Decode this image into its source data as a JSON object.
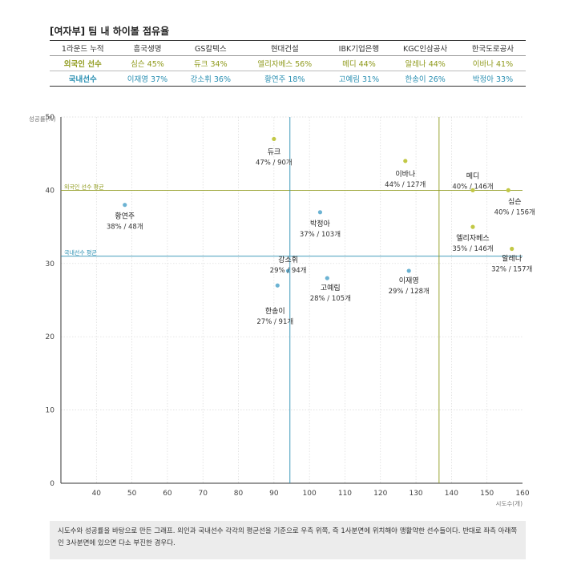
{
  "title": "[여자부] 팀 내 하이볼 점유율",
  "table": {
    "corner": "1라운드 누적",
    "teams": [
      "흥국생명",
      "GS칼텍스",
      "현대건설",
      "IBK기업은행",
      "KGC인삼공사",
      "한국도로공사"
    ],
    "rows": [
      {
        "label": "외국인 선수",
        "cells": [
          "심슨 45%",
          "듀크 34%",
          "엘리자베스 56%",
          "메디 44%",
          "알레나 44%",
          "이바나 41%"
        ]
      },
      {
        "label": "국내선수",
        "cells": [
          "이재영 37%",
          "강소휘 36%",
          "황연주 18%",
          "고예림 31%",
          "한송이 26%",
          "박정아 33%"
        ]
      }
    ]
  },
  "colors": {
    "foreign": "#8f9a1c",
    "domestic": "#2a8fb2",
    "foreign_point": "#c2c845",
    "domestic_point": "#6cb3d3"
  },
  "chart_data": {
    "type": "scatter",
    "xlabel": "시도수(개)",
    "ylabel": "성공률(%)",
    "xlim": [
      30,
      160
    ],
    "ylim": [
      0,
      50
    ],
    "xticks": [
      40,
      50,
      60,
      70,
      80,
      90,
      100,
      110,
      120,
      130,
      140,
      150,
      160
    ],
    "yticks": [
      0,
      10,
      20,
      30,
      40,
      50
    ],
    "grid": true,
    "reference_lines": [
      {
        "axis": "y",
        "value": 40,
        "label": "외국인 선수 평균",
        "group": "foreign"
      },
      {
        "axis": "y",
        "value": 31,
        "label": "국내선수 평균",
        "group": "domestic"
      },
      {
        "axis": "x",
        "value": 94.5,
        "group": "domestic"
      },
      {
        "axis": "x",
        "value": 136.5,
        "group": "foreign"
      }
    ],
    "points": [
      {
        "name": "듀크",
        "x": 90,
        "y": 47,
        "label": "47% / 90개",
        "group": "foreign"
      },
      {
        "name": "이바나",
        "x": 127,
        "y": 44,
        "label": "44% / 127개",
        "group": "foreign"
      },
      {
        "name": "메디",
        "x": 146,
        "y": 40,
        "label": "40% / 146개",
        "group": "foreign"
      },
      {
        "name": "심슨",
        "x": 156,
        "y": 40,
        "label": "40% / 156개",
        "group": "foreign"
      },
      {
        "name": "엘리자베스",
        "x": 146,
        "y": 35,
        "label": "35% / 146개",
        "group": "foreign"
      },
      {
        "name": "알레나",
        "x": 157,
        "y": 32,
        "label": "32% / 157개",
        "group": "foreign"
      },
      {
        "name": "황연주",
        "x": 48,
        "y": 38,
        "label": "38% / 48개",
        "group": "domestic"
      },
      {
        "name": "박정아",
        "x": 103,
        "y": 37,
        "label": "37% / 103개",
        "group": "domestic"
      },
      {
        "name": "강소휘",
        "x": 94,
        "y": 29,
        "label": "29% / 94개",
        "group": "domestic"
      },
      {
        "name": "한송이",
        "x": 91,
        "y": 27,
        "label": "27% / 91개",
        "group": "domestic"
      },
      {
        "name": "고예림",
        "x": 105,
        "y": 28,
        "label": "28% / 105개",
        "group": "domestic"
      },
      {
        "name": "이재영",
        "x": 128,
        "y": 29,
        "label": "29% / 128개",
        "group": "domestic"
      }
    ]
  },
  "note": "시도수와 성공률을 바탕으로 만든 그래프. 외인과 국내선수 각각의 평균선을 기준으로 우측 위쪽, 즉 1사분면에 위치해야 맹활약한 선수들이다. 반대로 좌측 아래쪽인 3사분면에 있으면 다소 부진한 경우다."
}
